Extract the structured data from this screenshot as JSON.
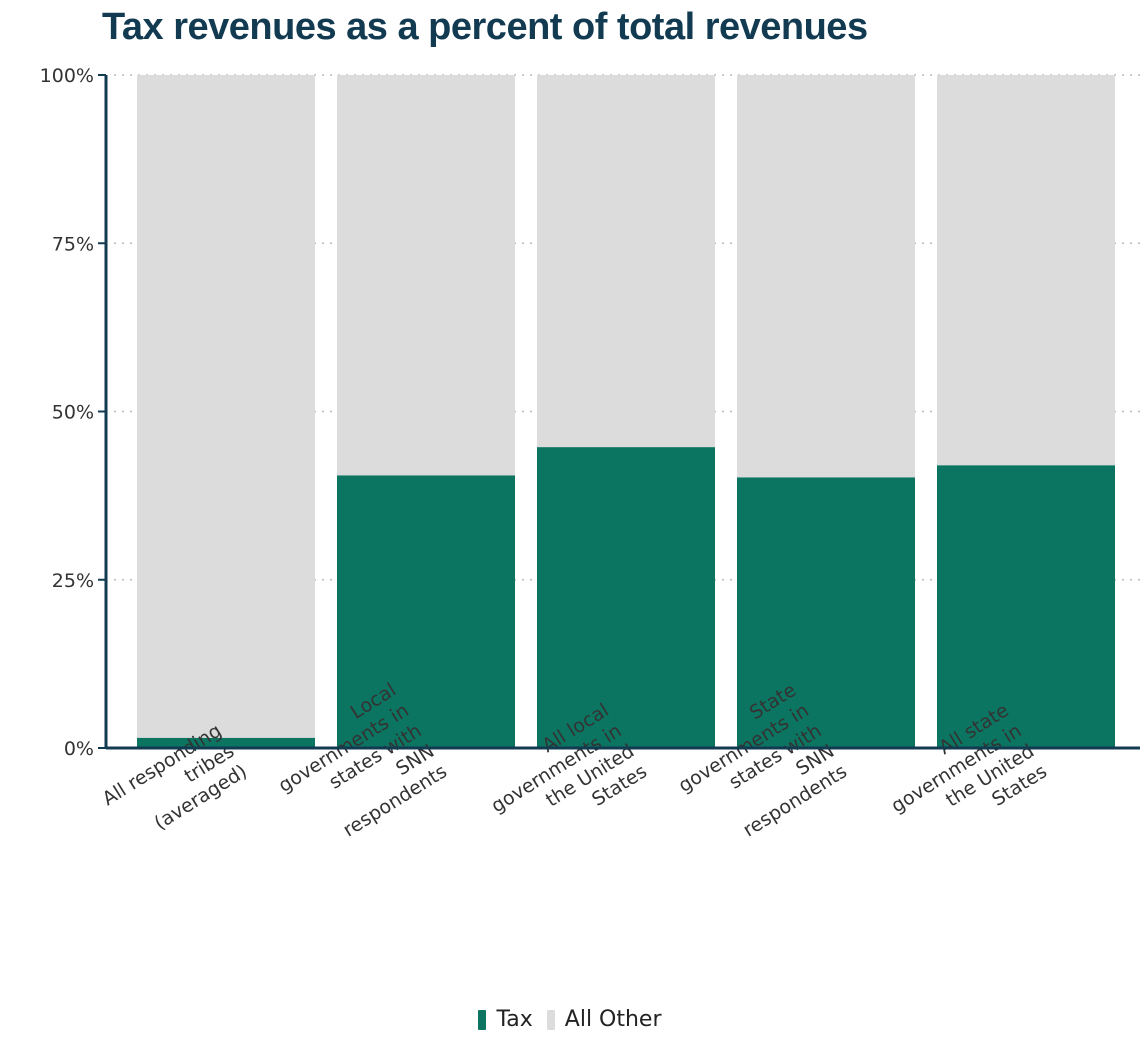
{
  "title": "Tax revenues as a percent of total revenues",
  "colors": {
    "tax": "#0b7561",
    "other": "#dcdcdc",
    "axis": "#123b52",
    "title": "#123b52"
  },
  "chart_data": {
    "type": "bar",
    "stacked": true,
    "title": "Tax revenues as a percent of total revenues",
    "xlabel": "",
    "ylabel": "",
    "ylim": [
      0,
      100
    ],
    "yticks": [
      "0%",
      "25%",
      "50%",
      "75%",
      "100%"
    ],
    "y_tick_values": [
      0,
      25,
      50,
      75,
      100
    ],
    "categories": [
      [
        "All responding",
        "tribes",
        "(averaged)"
      ],
      [
        "Local",
        "governments in",
        "states with",
        "SNN",
        "respondents"
      ],
      [
        "All local",
        "governments in",
        "the United",
        "States"
      ],
      [
        "State",
        "governments in",
        "states with",
        "SNN",
        "respondents"
      ],
      [
        "All state",
        "governments in",
        "the United",
        "States"
      ]
    ],
    "series": [
      {
        "name": "Tax",
        "color": "#0b7561",
        "values": [
          1.5,
          40.5,
          44.7,
          40.2,
          42
        ]
      },
      {
        "name": "All Other",
        "color": "#dcdcdc",
        "values": [
          98.5,
          59.5,
          55.3,
          59.8,
          58
        ]
      }
    ],
    "legend_position": "bottom-center"
  },
  "legend": [
    {
      "label": "Tax",
      "color": "#0b7561"
    },
    {
      "label": "All Other",
      "color": "#dcdcdc"
    }
  ]
}
